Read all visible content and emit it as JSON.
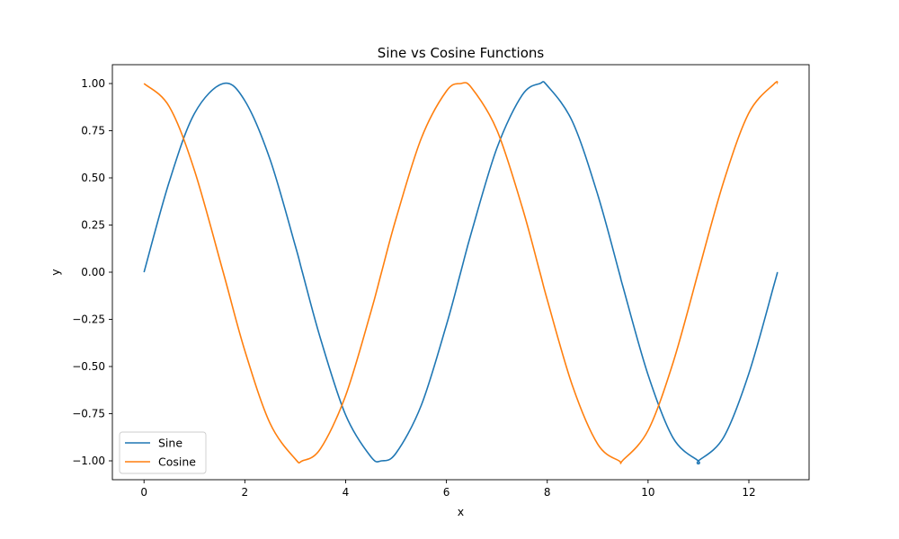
{
  "chart_data": {
    "type": "line",
    "title": "Sine vs Cosine Functions",
    "xlabel": "x",
    "ylabel": "y",
    "xlim": [
      -0.628,
      13.195
    ],
    "ylim": [
      -1.1,
      1.1
    ],
    "x_ticks": [
      0,
      2,
      4,
      6,
      8,
      10,
      12
    ],
    "x_tick_labels": [
      "0",
      "2",
      "4",
      "6",
      "8",
      "10",
      "12"
    ],
    "y_ticks": [
      -1.0,
      -0.75,
      -0.5,
      -0.25,
      0.0,
      0.25,
      0.5,
      0.75,
      1.0
    ],
    "y_tick_labels": [
      "−1.00",
      "−0.75",
      "−0.50",
      "−0.25",
      "0.00",
      "0.25",
      "0.50",
      "0.75",
      "1.00"
    ],
    "grid": false,
    "legend_position": "lower-left",
    "series": [
      {
        "name": "Sine",
        "color": "#1f77b4",
        "x": [
          0.0,
          0.5,
          1.0,
          1.5708,
          2.0,
          2.5,
          3.0,
          3.1416,
          3.5,
          4.0,
          4.5,
          4.7124,
          5.0,
          5.5,
          6.0,
          6.2832,
          6.5,
          7.0,
          7.5,
          7.854,
          8.0,
          8.5,
          9.0,
          9.4248,
          9.5,
          10.0,
          10.5,
          10.9956,
          11.0,
          11.5,
          12.0,
          12.5,
          12.5664
        ],
        "y": [
          0.0,
          0.479,
          0.841,
          1.0,
          0.909,
          0.598,
          0.141,
          0.0,
          -0.351,
          -0.757,
          -0.978,
          -1.0,
          -0.959,
          -0.706,
          -0.279,
          0.0,
          0.215,
          0.657,
          0.938,
          1.0,
          0.989,
          0.798,
          0.412,
          0.0,
          -0.075,
          -0.544,
          -0.88,
          -1.0,
          -1.0,
          -0.875,
          -0.537,
          -0.066,
          0.0
        ]
      },
      {
        "name": "Cosine",
        "color": "#ff7f0e",
        "x": [
          0.0,
          0.5,
          1.0,
          1.5708,
          2.0,
          2.5,
          3.0,
          3.1416,
          3.5,
          4.0,
          4.5,
          4.7124,
          5.0,
          5.5,
          6.0,
          6.2832,
          6.5,
          7.0,
          7.5,
          7.854,
          8.0,
          8.5,
          9.0,
          9.4248,
          9.5,
          10.0,
          10.5,
          10.9956,
          11.0,
          11.5,
          12.0,
          12.5,
          12.5664
        ],
        "y": [
          1.0,
          0.878,
          0.54,
          0.0,
          -0.416,
          -0.801,
          -0.99,
          -1.0,
          -0.936,
          -0.654,
          -0.211,
          0.0,
          0.284,
          0.709,
          0.96,
          1.0,
          0.977,
          0.754,
          0.347,
          0.0,
          -0.146,
          -0.602,
          -0.911,
          -1.0,
          -0.997,
          -0.839,
          -0.476,
          0.0,
          0.004,
          0.48,
          0.844,
          0.998,
          1.0
        ]
      }
    ]
  }
}
